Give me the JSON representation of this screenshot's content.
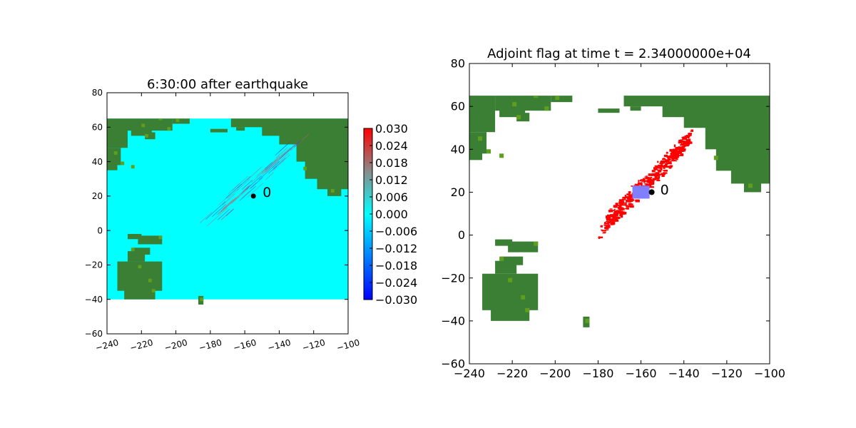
{
  "chart_data": [
    {
      "type": "heatmap",
      "title": "6:30:00 after earthquake",
      "xlim": [
        -240,
        -100
      ],
      "ylim": [
        -60,
        80
      ],
      "xticks": [
        -240,
        -220,
        -200,
        -180,
        -160,
        -140,
        -120,
        -100
      ],
      "yticks": [
        -60,
        -40,
        -20,
        0,
        20,
        40,
        60,
        80
      ],
      "xtick_labels": [
        "−240",
        "−220",
        "−200",
        "−180",
        "−160",
        "−140",
        "−120",
        "−100"
      ],
      "ytick_labels": [
        "−60",
        "−40",
        "−20",
        "0",
        "20",
        "40",
        "60",
        "80"
      ],
      "domain": {
        "x": [
          -240,
          -100
        ],
        "y": [
          -40,
          65
        ]
      },
      "ocean_value": 0.0,
      "gauge": {
        "x": -155,
        "y": 20,
        "label": "0"
      },
      "colorbar": {
        "vmin": -0.03,
        "vmax": 0.03,
        "ticks": [
          "0.030",
          "0.024",
          "0.018",
          "0.012",
          "0.006",
          "0.000",
          "−0.006",
          "−0.012",
          "−0.018",
          "−0.024",
          "−0.030"
        ]
      },
      "grid": false
    },
    {
      "type": "heatmap",
      "title": "Adjoint flag at time t = 2.34000000e+04",
      "xlim": [
        -240,
        -100
      ],
      "ylim": [
        -60,
        80
      ],
      "xticks": [
        -240,
        -220,
        -200,
        -180,
        -160,
        -140,
        -120,
        -100
      ],
      "yticks": [
        -60,
        -40,
        -20,
        0,
        20,
        40,
        60,
        80
      ],
      "xtick_labels": [
        "−240",
        "−220",
        "−200",
        "−180",
        "−160",
        "−140",
        "−120",
        "−100"
      ],
      "ytick_labels": [
        "−60",
        "−40",
        "−20",
        "0",
        "20",
        "40",
        "60",
        "80"
      ],
      "gauge": {
        "x": -155,
        "y": 20,
        "label": "0"
      },
      "gauge_region": {
        "x": [
          -164,
          -156
        ],
        "y": [
          17,
          23
        ]
      },
      "grid": false
    }
  ],
  "colors": {
    "ocean": "#00ffff",
    "land": "#3a7f34",
    "coast": "#5f9e1e",
    "flag": "#ff0000",
    "region": "#7f7fff"
  }
}
